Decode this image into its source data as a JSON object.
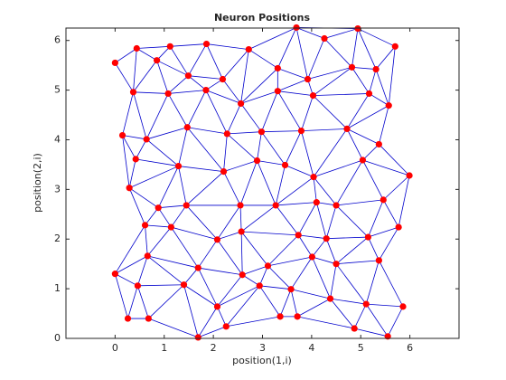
{
  "chart_data": {
    "type": "scatter",
    "title": "Neuron Positions",
    "x_label": "position(1,i)",
    "y_label": "position(2,i)",
    "x": [
      0,
      0.44,
      1.12,
      1.86,
      2.72,
      3.69,
      4.26,
      4.94,
      5.7,
      0.85,
      1.49,
      2.19,
      3.31,
      3.92,
      4.82,
      5.31,
      0.37,
      1.08,
      1.85,
      2.56,
      3.31,
      4.03,
      5.17,
      5.57,
      0.15,
      0.64,
      1.47,
      2.28,
      2.98,
      3.79,
      4.72,
      5.37,
      0.42,
      1.29,
      2.21,
      2.89,
      3.46,
      4.04,
      5.04,
      5.99,
      0.29,
      0.88,
      1.45,
      2.55,
      3.27,
      4.1,
      4.5,
      5.46,
      0.61,
      1.14,
      2.08,
      2.57,
      3.73,
      4.3,
      5.15,
      5.77,
      0.66,
      0,
      1.69,
      2.59,
      3.11,
      4.01,
      4.5,
      5.37,
      0.46,
      1.4,
      2.94,
      3.58,
      4.38,
      5.11,
      5.86,
      0.26,
      0.68,
      2.08,
      3.36,
      3.71,
      4.87,
      5.55,
      1.69,
      2.26
    ],
    "values": [
      5.55,
      5.84,
      5.88,
      5.93,
      5.82,
      6.26,
      6.04,
      6.24,
      5.88,
      5.6,
      5.29,
      5.22,
      5.44,
      5.22,
      5.46,
      5.42,
      4.96,
      4.93,
      5,
      4.73,
      4.98,
      4.89,
      4.93,
      4.69,
      4.09,
      4.01,
      4.25,
      4.12,
      4.16,
      4.18,
      4.22,
      3.91,
      3.61,
      3.47,
      3.36,
      3.58,
      3.49,
      3.25,
      3.59,
      3.28,
      3.03,
      2.63,
      2.68,
      2.68,
      2.68,
      2.74,
      2.68,
      2.79,
      2.28,
      2.24,
      1.99,
      2.15,
      2.08,
      2.01,
      2.04,
      2.24,
      1.66,
      1.3,
      1.42,
      1.28,
      1.46,
      1.64,
      1.5,
      1.57,
      1.06,
      1.08,
      1.06,
      0.99,
      0.8,
      0.69,
      0.64,
      0.4,
      0.4,
      0.64,
      0.44,
      0.44,
      0.2,
      0.04,
      0.02,
      0.24
    ],
    "color": "#ff0000",
    "line_color": "#0000cc",
    "xlim": [
      -1,
      7
    ],
    "xticks": [
      0,
      1,
      2,
      3,
      4,
      5,
      6
    ],
    "ylim": [
      0,
      6.25
    ],
    "yticks": [
      0,
      1,
      2,
      3,
      4,
      5,
      6
    ]
  }
}
